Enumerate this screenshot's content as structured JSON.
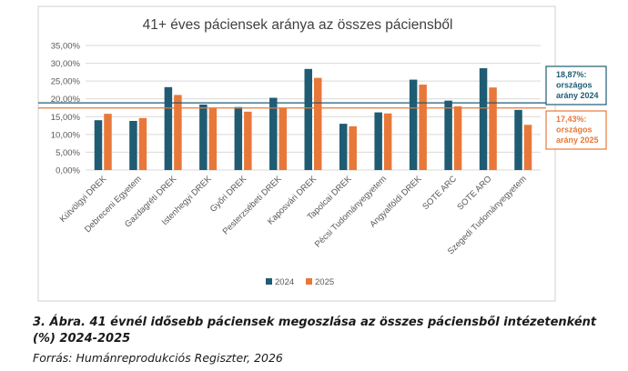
{
  "chart_data": {
    "type": "bar",
    "title": "41+ éves páciensek aránya az összes páciensből",
    "categories": [
      "Kútvölgyi DREK",
      "Debreceni Egyetem",
      "Gazdagréti DREK",
      "Istenhegyi DREK",
      "Győri DREK",
      "Pesterzsébeti DREK",
      "Kaposvári DREK",
      "Tapolcai DREK",
      "Pécsi Tudományegyetem",
      "Angyalföldi DREK",
      "SOTE ARC",
      "SOTE ARO",
      "Szegedi Tudományegyetem"
    ],
    "series": [
      {
        "name": "2024",
        "color": "#1f5c73",
        "values": [
          14.0,
          13.8,
          23.3,
          18.4,
          17.7,
          20.3,
          28.4,
          13.0,
          16.2,
          25.4,
          19.5,
          28.6,
          16.9
        ]
      },
      {
        "name": "2025",
        "color": "#e8783a",
        "values": [
          15.8,
          14.6,
          21.1,
          17.5,
          16.4,
          17.4,
          25.9,
          12.3,
          15.9,
          24.0,
          17.9,
          23.2,
          12.7
        ]
      }
    ],
    "yticks": [
      "35,00%",
      "30,00%",
      "25,00%",
      "20,00%",
      "15,00%",
      "10,00%",
      "5,00%",
      "0,00%"
    ],
    "ylim": [
      0,
      35
    ],
    "grid": true,
    "legend_position": "bottom",
    "reference_lines": [
      {
        "value": 18.87,
        "color": "#1f5c73",
        "label_lines": [
          "18,87%:",
          "országos",
          "arány 2024"
        ]
      },
      {
        "value": 17.43,
        "color": "#e8783a",
        "label_lines": [
          "17,43%:",
          "országos",
          "arány 2025"
        ]
      }
    ]
  },
  "caption": "3. Ábra. 41 évnél idősebb páciensek megoszlása az összes páciensből intézetenként (%) 2024-2025",
  "source": "Forrás: Humánreprodukciós Regiszter, 2026"
}
